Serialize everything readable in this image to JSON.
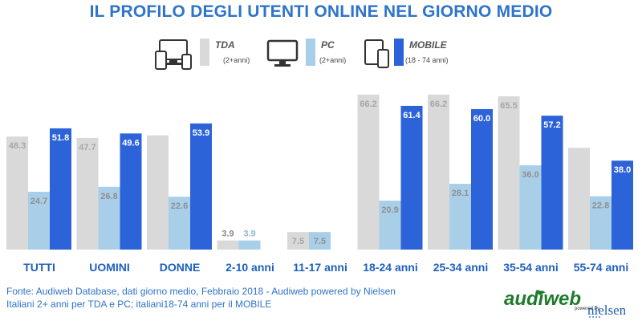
{
  "title": "IL PROFILO DEGLI UTENTI ONLINE NEL GIORNO MEDIO",
  "legend": [
    {
      "name": "TDA",
      "sub": "(2+anni)",
      "color": "#d9d9d9",
      "icon": "multi-device-icon"
    },
    {
      "name": "PC",
      "sub": "(2+anni)",
      "color": "#a9cfe8",
      "icon": "monitor-icon"
    },
    {
      "name": "MOBILE",
      "sub": "(18 - 74 anni)",
      "color": "#2d63d8",
      "icon": "mobile-devices-icon"
    }
  ],
  "chart_data": {
    "type": "bar",
    "title": "IL PROFILO DEGLI UTENTI ONLINE NEL GIORNO MEDIO",
    "categories": [
      "TUTTI",
      "UOMINI",
      "DONNE",
      "2-10 anni",
      "11-17 anni",
      "18-24 anni",
      "25-34 anni",
      "35-54 anni",
      "55-74 anni"
    ],
    "series": [
      {
        "name": "TDA",
        "values": [
          48.3,
          47.7,
          null,
          3.9,
          7.5,
          66.2,
          66.2,
          65.5,
          null
        ]
      },
      {
        "name": "PC",
        "values": [
          24.7,
          26.8,
          22.6,
          3.9,
          7.5,
          20.9,
          28.1,
          36.0,
          22.8
        ]
      },
      {
        "name": "MOBILE",
        "values": [
          51.8,
          49.6,
          53.9,
          null,
          null,
          61.4,
          60.0,
          57.2,
          38.0
        ]
      }
    ],
    "unlabeled_values": {
      "DONNE_TDA": 48.8,
      "55-74 anni_TDA": 43.5
    },
    "ylim": [
      0,
      72
    ],
    "grid": false,
    "legend_position": "top-center",
    "colors": {
      "TDA": "#d9d9d9",
      "PC": "#a9cfe8",
      "MOBILE": "#2d63d8",
      "axis_labels": "#1f5fbf"
    }
  },
  "footer": {
    "line1": "Fonte: Audiweb Database, dati giorno medio, Febbraio 2018 - Audiweb powered by Nielsen",
    "line2": "Italiani 2+ anni per TDA e PC; italiani18-74 anni per il MOBILE"
  },
  "logo": {
    "brand": "audiweb",
    "powered": "powered by",
    "partner": "nielsen"
  }
}
